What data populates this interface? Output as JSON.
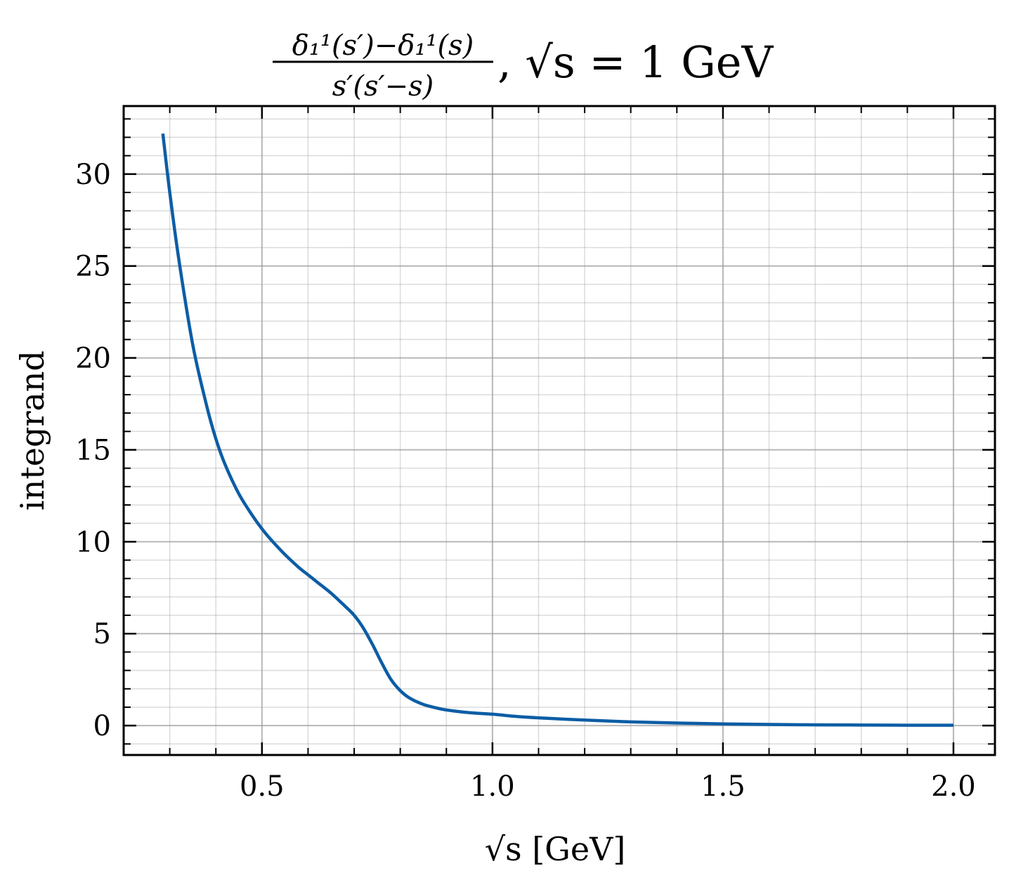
{
  "chart_data": {
    "type": "line",
    "title": {
      "numerator": "δ₁¹(s′)−δ₁¹(s)",
      "denominator": "s′(s′−s)",
      "suffix": ", √s = 1 GeV"
    },
    "xlabel": "√s [GeV]",
    "ylabel": "integrand",
    "xlim": [
      0.2,
      2.09
    ],
    "ylim": [
      -1.6,
      33.7
    ],
    "x_ticks": [
      0.5,
      1.0,
      1.5,
      2.0
    ],
    "x_tick_labels": [
      "0.5",
      "1.0",
      "1.5",
      "2.0"
    ],
    "y_ticks": [
      0,
      5,
      10,
      15,
      20,
      25,
      30
    ],
    "y_tick_labels": [
      "0",
      "5",
      "10",
      "15",
      "20",
      "25",
      "30"
    ],
    "x_minor_step": 0.1,
    "y_minor_step": 1,
    "grid": true,
    "colors": {
      "series": "#0C5DA5",
      "grid": "#999999"
    },
    "series": [
      {
        "x": [
          0.285,
          0.3,
          0.32,
          0.35,
          0.38,
          0.4,
          0.42,
          0.45,
          0.48,
          0.5,
          0.52,
          0.55,
          0.58,
          0.6,
          0.62,
          0.65,
          0.68,
          0.7,
          0.72,
          0.74,
          0.76,
          0.78,
          0.8,
          0.82,
          0.85,
          0.88,
          0.9,
          0.95,
          1.0,
          1.05,
          1.1,
          1.2,
          1.3,
          1.4,
          1.5,
          1.6,
          1.7,
          1.8,
          1.9,
          2.0
        ],
        "y": [
          32.2,
          29.0,
          25.3,
          20.7,
          17.4,
          15.6,
          14.2,
          12.6,
          11.4,
          10.7,
          10.1,
          9.3,
          8.6,
          8.2,
          7.8,
          7.2,
          6.5,
          6.0,
          5.3,
          4.4,
          3.4,
          2.5,
          1.9,
          1.5,
          1.15,
          0.95,
          0.85,
          0.7,
          0.62,
          0.5,
          0.42,
          0.3,
          0.2,
          0.14,
          0.09,
          0.06,
          0.04,
          0.03,
          0.02,
          0.02
        ]
      }
    ]
  }
}
